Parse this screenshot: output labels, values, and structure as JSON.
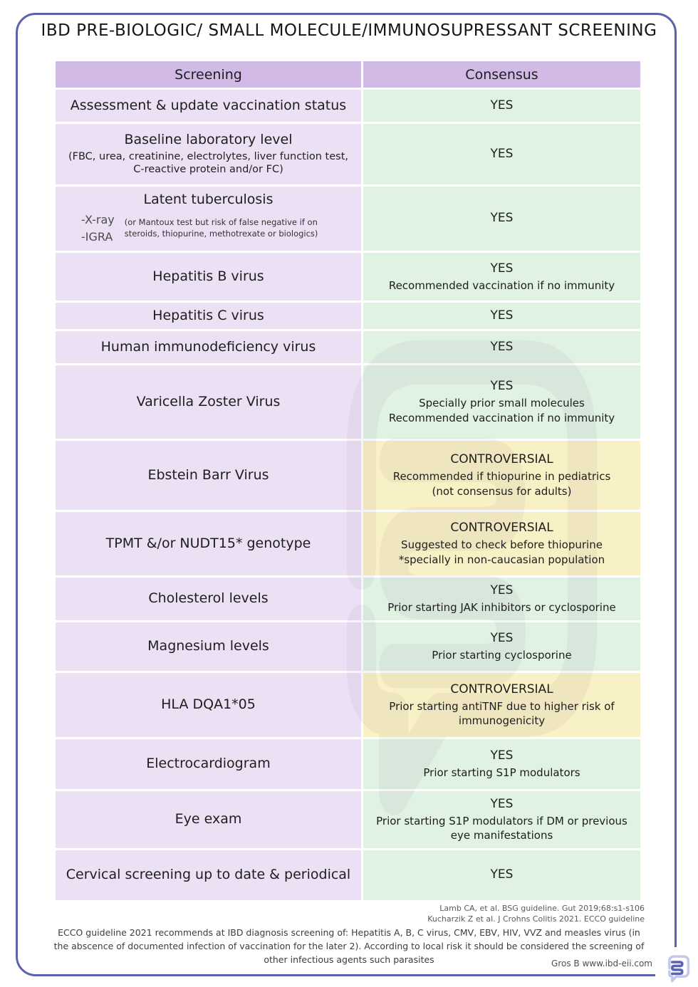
{
  "title": "IBD PRE-BIOLOGIC/ SMALL MOLECULE/IMMUNOSUPRESSANT SCREENING",
  "table": {
    "headers": {
      "screening": "Screening",
      "consensus": "Consensus"
    },
    "rows": [
      {
        "name": "assessment-vaccination",
        "status": "yes",
        "screening": {
          "title": "Assessment & update vaccination status"
        },
        "consensus": {
          "verdict": "YES",
          "details": []
        }
      },
      {
        "name": "baseline-labs",
        "status": "yes",
        "screening": {
          "title": "Baseline laboratory level",
          "sub": "(FBC, urea, creatinine, electrolytes, liver function test, C-reactive protein and/or FC)"
        },
        "consensus": {
          "verdict": "YES",
          "details": []
        }
      },
      {
        "name": "latent-tuberculosis",
        "status": "yes",
        "screening": {
          "title": "Latent tuberculosis",
          "bullets": [
            "-X-ray",
            "-IGRA"
          ],
          "note": "(or Mantoux test but risk of false negative if on steroids, thiopurine, methotrexate or biologics)"
        },
        "consensus": {
          "verdict": "YES",
          "details": []
        }
      },
      {
        "name": "hepatitis-b",
        "status": "yes",
        "screening": {
          "title": "Hepatitis B virus"
        },
        "consensus": {
          "verdict": "YES",
          "details": [
            "Recommended vaccination if no immunity"
          ]
        }
      },
      {
        "name": "hepatitis-c",
        "status": "yes",
        "screening": {
          "title": "Hepatitis C virus"
        },
        "consensus": {
          "verdict": "YES",
          "details": []
        }
      },
      {
        "name": "hiv",
        "status": "yes",
        "screening": {
          "title": "Human immunodeficiency virus"
        },
        "consensus": {
          "verdict": "YES",
          "details": []
        }
      },
      {
        "name": "varicella-zoster",
        "status": "yes",
        "screening": {
          "title": "Varicella Zoster Virus"
        },
        "consensus": {
          "verdict": "YES",
          "details": [
            "Specially prior small molecules",
            "Recommended vaccination if no immunity"
          ]
        }
      },
      {
        "name": "ebstein-barr",
        "status": "controversial",
        "screening": {
          "title": "Ebstein Barr Virus"
        },
        "consensus": {
          "verdict": "CONTROVERSIAL",
          "details": [
            "Recommended if thiopurine in pediatrics",
            "(not consensus for adults)"
          ]
        }
      },
      {
        "name": "tpmt-nudt15",
        "status": "controversial",
        "screening": {
          "title": "TPMT &/or NUDT15* genotype"
        },
        "consensus": {
          "verdict": "CONTROVERSIAL",
          "details": [
            "Suggested to check before thiopurine",
            "*specially in non-caucasian population"
          ]
        }
      },
      {
        "name": "cholesterol",
        "status": "yes",
        "screening": {
          "title": "Cholesterol levels"
        },
        "consensus": {
          "verdict": "YES",
          "details": [
            "Prior starting JAK inhibitors or cyclosporine"
          ]
        }
      },
      {
        "name": "magnesium",
        "status": "yes",
        "screening": {
          "title": "Magnesium levels"
        },
        "consensus": {
          "verdict": "YES",
          "details": [
            "Prior starting cyclosporine"
          ]
        }
      },
      {
        "name": "hla-dqa1-05",
        "status": "controversial",
        "screening": {
          "title": "HLA DQA1*05"
        },
        "consensus": {
          "verdict": "CONTROVERSIAL",
          "details": [
            "Prior starting antiTNF due to higher risk of immunogenicity"
          ]
        }
      },
      {
        "name": "electrocardiogram",
        "status": "yes",
        "screening": {
          "title": "Electrocardiogram"
        },
        "consensus": {
          "verdict": "YES",
          "details": [
            "Prior starting S1P modulators"
          ]
        }
      },
      {
        "name": "eye-exam",
        "status": "yes",
        "screening": {
          "title": "Eye exam"
        },
        "consensus": {
          "verdict": "YES",
          "details": [
            "Prior starting S1P modulators if DM or previous eye manifestations"
          ]
        }
      },
      {
        "name": "cervical-screening",
        "status": "yes",
        "screening": {
          "title": "Cervical screening up to date & periodical"
        },
        "consensus": {
          "verdict": "YES",
          "details": []
        }
      }
    ]
  },
  "references": [
    "Lamb CA, et al. BSG guideline. Gut 2019;68:s1-s106",
    "Kucharzik Z et al. J Crohns Colitis 2021. ECCO guideline"
  ],
  "footnote": "ECCO guideline 2021 recommends at IBD diagnosis screening of: Hepatitis A, B, C virus, CMV, EBV, HIV, VVZ and measles virus (in the abscence of documented infection of vaccination for the later 2). According to local risk it should be considered the screening of other infectious agents such parasites",
  "credit": "Gros B www.ibd-eii.com",
  "colors": {
    "frame": "#5b63ad",
    "header_bg": "#d2bae6",
    "screening_bg": "#ece0f5",
    "yes_bg": "#e0f2e2",
    "controversial_bg": "#f9f1c6",
    "logo_outline": "#c4c9ec",
    "logo_inner": "#5c63ac"
  },
  "icons": {
    "logo": "intestine-logo",
    "watermark": "intestine-watermark"
  }
}
